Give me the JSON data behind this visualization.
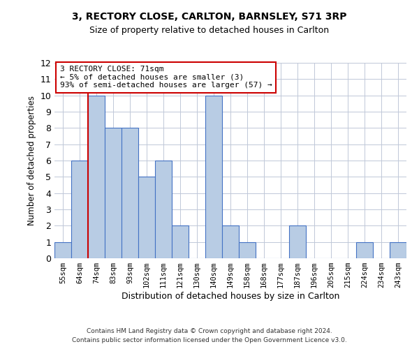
{
  "title1": "3, RECTORY CLOSE, CARLTON, BARNSLEY, S71 3RP",
  "title2": "Size of property relative to detached houses in Carlton",
  "xlabel": "Distribution of detached houses by size in Carlton",
  "ylabel": "Number of detached properties",
  "categories": [
    "55sqm",
    "64sqm",
    "74sqm",
    "83sqm",
    "93sqm",
    "102sqm",
    "111sqm",
    "121sqm",
    "130sqm",
    "140sqm",
    "149sqm",
    "158sqm",
    "168sqm",
    "177sqm",
    "187sqm",
    "196sqm",
    "205sqm",
    "215sqm",
    "224sqm",
    "234sqm",
    "243sqm"
  ],
  "values": [
    1,
    6,
    10,
    8,
    8,
    5,
    6,
    2,
    0,
    10,
    2,
    1,
    0,
    0,
    2,
    0,
    0,
    0,
    1,
    0,
    1
  ],
  "bar_color": "#b8cce4",
  "bar_edge_color": "#4472c4",
  "vline_color": "#cc0000",
  "annotation_text": "3 RECTORY CLOSE: 71sqm\n← 5% of detached houses are smaller (3)\n93% of semi-detached houses are larger (57) →",
  "annotation_box_color": "#ffffff",
  "annotation_box_edge": "#cc0000",
  "ylim": [
    0,
    12
  ],
  "yticks": [
    0,
    1,
    2,
    3,
    4,
    5,
    6,
    7,
    8,
    9,
    10,
    11,
    12
  ],
  "footer1": "Contains HM Land Registry data © Crown copyright and database right 2024.",
  "footer2": "Contains public sector information licensed under the Open Government Licence v3.0.",
  "background_color": "#ffffff",
  "grid_color": "#c0c8d8"
}
